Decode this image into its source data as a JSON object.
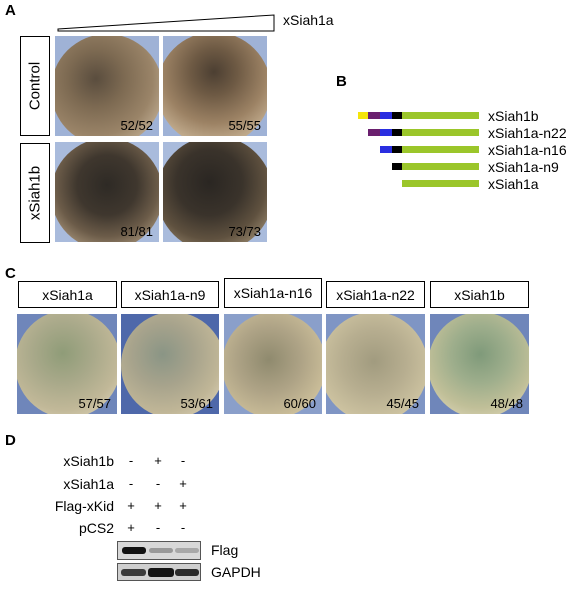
{
  "panel_a": {
    "label": "A",
    "gradient_label": "xSiah1a",
    "rows": [
      {
        "label": "Control",
        "counts": [
          "52/52",
          "55/55"
        ]
      },
      {
        "label": "xSiah1b",
        "counts": [
          "81/81",
          "73/73"
        ]
      }
    ]
  },
  "panel_b": {
    "label": "B",
    "constructs": [
      "xSiah1b",
      "xSiah1a-n22",
      "xSiah1a-n16",
      "xSiah1a-n9",
      "xSiah1a"
    ],
    "colors": {
      "yellow": "#f5e50a",
      "purple": "#6a1f6e",
      "blue": "#2a2ee0",
      "black": "#000000",
      "green": "#9bc62a"
    }
  },
  "panel_c": {
    "label": "C",
    "items": [
      {
        "label": "xSiah1a",
        "count": "57/57"
      },
      {
        "label": "xSiah1a-n9",
        "count": "53/61"
      },
      {
        "label": "xSiah1a-n16",
        "count": "60/60"
      },
      {
        "label": "xSiah1a-n22",
        "count": "45/45"
      },
      {
        "label": "xSiah1b",
        "count": "48/48"
      }
    ]
  },
  "panel_d": {
    "label": "D",
    "rows": [
      {
        "label": "xSiah1b",
        "signs": [
          "-",
          "+",
          "-"
        ]
      },
      {
        "label": "xSiah1a",
        "signs": [
          "-",
          "-",
          "+"
        ]
      },
      {
        "label": "Flag-xKid",
        "signs": [
          "+",
          "+",
          "+"
        ]
      },
      {
        "label": "pCS2",
        "signs": [
          "+",
          "-",
          "-"
        ]
      }
    ],
    "blots": [
      {
        "label": "Flag",
        "band_levels": [
          1.0,
          0.15,
          0.1
        ]
      },
      {
        "label": "GAPDH",
        "band_levels": [
          0.7,
          0.95,
          0.8
        ]
      }
    ]
  }
}
